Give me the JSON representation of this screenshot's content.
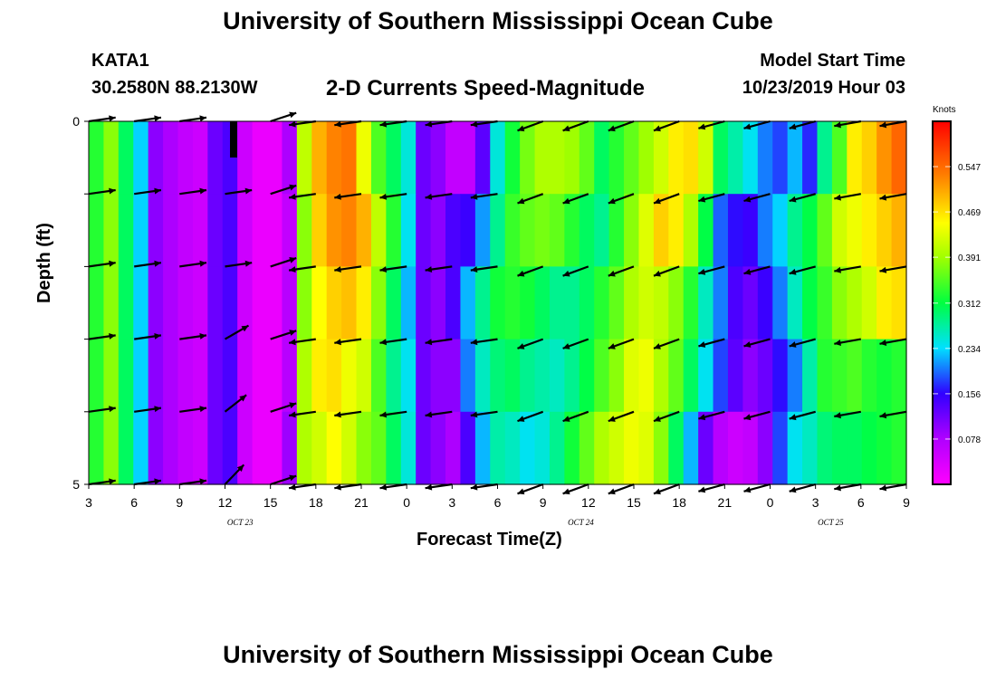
{
  "header": {
    "title": "University of Southern Mississippi Ocean Cube",
    "station_id": "KATA1",
    "coordinates": "30.2580N 88.2130W",
    "subtitle": "2-D Currents Speed-Magnitude",
    "model_start_label": "Model Start Time",
    "model_start_value": "10/23/2019 Hour 03"
  },
  "footer": {
    "title": "University of Southern Mississippi Ocean Cube"
  },
  "chart_data": {
    "type": "heatmap",
    "title": "2-D Currents Speed-Magnitude",
    "xlabel": "Forecast Time(Z)",
    "ylabel": "Depth (ft)",
    "x_range_hours": [
      0,
      54
    ],
    "y_range_ft": [
      0,
      5
    ],
    "y_ticks": [
      0,
      5
    ],
    "x_tick_labels": [
      "3",
      "6",
      "9",
      "12",
      "15",
      "18",
      "21",
      "0",
      "3",
      "6",
      "9",
      "12",
      "15",
      "18",
      "21",
      "0",
      "3",
      "6",
      "9"
    ],
    "date_labels": [
      {
        "label": "OCT 23",
        "hour": 10
      },
      {
        "label": "OCT 24",
        "hour": 32.5
      },
      {
        "label": "OCT 25",
        "hour": 49
      }
    ],
    "colorbar": {
      "title": "Knots",
      "ticks": [
        0.078,
        0.156,
        0.234,
        0.312,
        0.391,
        0.469,
        0.547
      ],
      "range": [
        0,
        0.625
      ]
    },
    "depth_rows": 5,
    "series_hourly_speed_by_depth": [
      [
        0.33,
        0.38,
        0.3,
        0.23,
        0.1,
        0.08,
        0.06,
        0.05,
        0.12,
        0.14,
        0.05,
        0.02,
        0.02,
        0.08,
        0.41,
        0.5,
        0.53,
        0.54,
        0.44,
        0.35,
        0.3,
        0.25,
        0.12,
        0.1,
        0.06,
        0.06,
        0.13,
        0.25,
        0.32,
        0.37,
        0.4,
        0.4,
        0.39,
        0.36,
        0.3,
        0.33,
        0.36,
        0.39,
        0.42,
        0.46,
        0.47,
        0.42,
        0.3,
        0.27,
        0.24,
        0.2,
        0.18,
        0.22,
        0.17,
        0.28,
        0.35,
        0.46,
        0.48,
        0.52,
        0.55
      ],
      [
        0.33,
        0.38,
        0.3,
        0.23,
        0.1,
        0.08,
        0.06,
        0.05,
        0.12,
        0.14,
        0.05,
        0.02,
        0.02,
        0.06,
        0.38,
        0.48,
        0.52,
        0.53,
        0.5,
        0.41,
        0.33,
        0.24,
        0.12,
        0.1,
        0.14,
        0.15,
        0.21,
        0.28,
        0.34,
        0.36,
        0.37,
        0.36,
        0.33,
        0.3,
        0.28,
        0.33,
        0.38,
        0.43,
        0.48,
        0.46,
        0.4,
        0.31,
        0.19,
        0.16,
        0.15,
        0.2,
        0.23,
        0.28,
        0.31,
        0.36,
        0.42,
        0.44,
        0.46,
        0.48,
        0.5
      ],
      [
        0.33,
        0.38,
        0.3,
        0.23,
        0.1,
        0.08,
        0.06,
        0.05,
        0.12,
        0.14,
        0.05,
        0.02,
        0.02,
        0.07,
        0.38,
        0.45,
        0.48,
        0.49,
        0.46,
        0.38,
        0.3,
        0.22,
        0.12,
        0.1,
        0.14,
        0.22,
        0.28,
        0.32,
        0.33,
        0.32,
        0.3,
        0.28,
        0.28,
        0.3,
        0.33,
        0.36,
        0.4,
        0.42,
        0.41,
        0.38,
        0.33,
        0.26,
        0.2,
        0.14,
        0.12,
        0.15,
        0.2,
        0.26,
        0.31,
        0.34,
        0.38,
        0.4,
        0.42,
        0.46,
        0.47
      ],
      [
        0.33,
        0.38,
        0.3,
        0.23,
        0.1,
        0.08,
        0.06,
        0.05,
        0.12,
        0.14,
        0.05,
        0.02,
        0.02,
        0.07,
        0.4,
        0.46,
        0.47,
        0.44,
        0.42,
        0.35,
        0.28,
        0.24,
        0.12,
        0.1,
        0.1,
        0.2,
        0.26,
        0.29,
        0.3,
        0.28,
        0.27,
        0.26,
        0.28,
        0.31,
        0.35,
        0.38,
        0.43,
        0.44,
        0.4,
        0.36,
        0.3,
        0.24,
        0.18,
        0.13,
        0.1,
        0.12,
        0.16,
        0.2,
        0.27,
        0.33,
        0.34,
        0.35,
        0.33,
        0.32,
        0.33
      ],
      [
        0.33,
        0.38,
        0.3,
        0.23,
        0.1,
        0.08,
        0.06,
        0.05,
        0.12,
        0.14,
        0.05,
        0.02,
        0.02,
        0.09,
        0.4,
        0.42,
        0.45,
        0.42,
        0.38,
        0.36,
        0.3,
        0.25,
        0.12,
        0.1,
        0.08,
        0.14,
        0.22,
        0.27,
        0.26,
        0.24,
        0.25,
        0.28,
        0.32,
        0.36,
        0.4,
        0.42,
        0.44,
        0.43,
        0.38,
        0.3,
        0.22,
        0.12,
        0.07,
        0.05,
        0.06,
        0.1,
        0.18,
        0.24,
        0.26,
        0.29,
        0.3,
        0.3,
        0.31,
        0.32,
        0.33
      ]
    ]
  }
}
